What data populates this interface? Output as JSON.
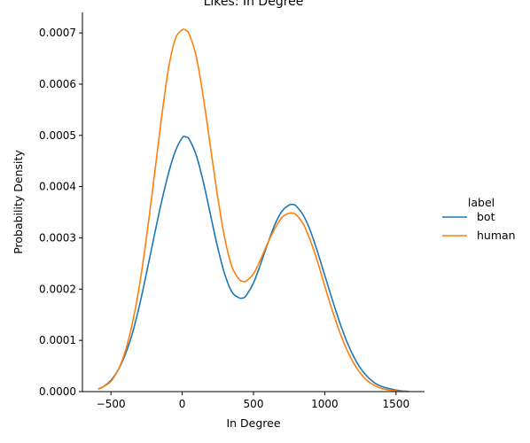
{
  "chart_data": {
    "type": "line",
    "title": "Likes: In Degree",
    "xlabel": "In Degree",
    "ylabel": "Probability Density",
    "xlim": [
      -700,
      1700
    ],
    "ylim": [
      0,
      0.00074
    ],
    "x_ticks": [
      -500,
      0,
      500,
      1000,
      1500
    ],
    "x_tick_labels": [
      "−500",
      "0",
      "500",
      "1000",
      "1500"
    ],
    "y_ticks": [
      0,
      0.0001,
      0.0002,
      0.0003,
      0.0004,
      0.0005,
      0.0006,
      0.0007
    ],
    "y_tick_labels": [
      "0.0000",
      "0.0001",
      "0.0002",
      "0.0003",
      "0.0004",
      "0.0005",
      "0.0006",
      "0.0007"
    ],
    "legend": {
      "title": "label",
      "position": "right"
    },
    "x": [
      -590,
      -550,
      -500,
      -450,
      -400,
      -350,
      -300,
      -250,
      -200,
      -150,
      -100,
      -50,
      0,
      25,
      50,
      100,
      150,
      200,
      250,
      300,
      350,
      400,
      430,
      450,
      500,
      550,
      600,
      650,
      700,
      750,
      780,
      800,
      850,
      900,
      950,
      1000,
      1050,
      1100,
      1150,
      1200,
      1250,
      1300,
      1350,
      1400,
      1450,
      1500,
      1550,
      1590
    ],
    "series": [
      {
        "name": "bot",
        "color": "#1f77b4",
        "values": [
          5e-06,
          1e-05,
          2.2e-05,
          4.2e-05,
          7.2e-05,
          0.000113,
          0.000168,
          0.000232,
          0.000299,
          0.000364,
          0.000422,
          0.000468,
          0.000495,
          0.000497,
          0.000492,
          0.00046,
          0.000407,
          0.000343,
          0.00028,
          0.000228,
          0.000194,
          0.000183,
          0.000183,
          0.000188,
          0.000212,
          0.000249,
          0.000289,
          0.000326,
          0.000352,
          0.000364,
          0.000365,
          0.000362,
          0.000344,
          0.000313,
          0.000272,
          0.000227,
          0.000182,
          0.000139,
          0.000101,
          7e-05,
          4.6e-05,
          2.9e-05,
          1.7e-05,
          1e-05,
          6e-06,
          3e-06,
          1e-06,
          5e-07
        ]
      },
      {
        "name": "human",
        "color": "#ff7f0e",
        "values": [
          5e-06,
          1e-05,
          2e-05,
          4.2e-05,
          7.8e-05,
          0.000133,
          0.000207,
          0.000302,
          0.000411,
          0.000524,
          0.000624,
          0.000687,
          0.000706,
          0.000705,
          0.000697,
          0.000652,
          0.000571,
          0.000474,
          0.000378,
          0.000297,
          0.000243,
          0.000219,
          0.000215,
          0.000216,
          0.00023,
          0.000258,
          0.00029,
          0.000318,
          0.00034,
          0.000348,
          0.000348,
          0.000345,
          0.000327,
          0.000294,
          0.000253,
          0.000206,
          0.000161,
          0.00012,
          8.5e-05,
          5.7e-05,
          3.6e-05,
          2.1e-05,
          1.2e-05,
          6e-06,
          3e-06,
          1.5e-06,
          7e-07,
          3e-07
        ]
      }
    ]
  }
}
